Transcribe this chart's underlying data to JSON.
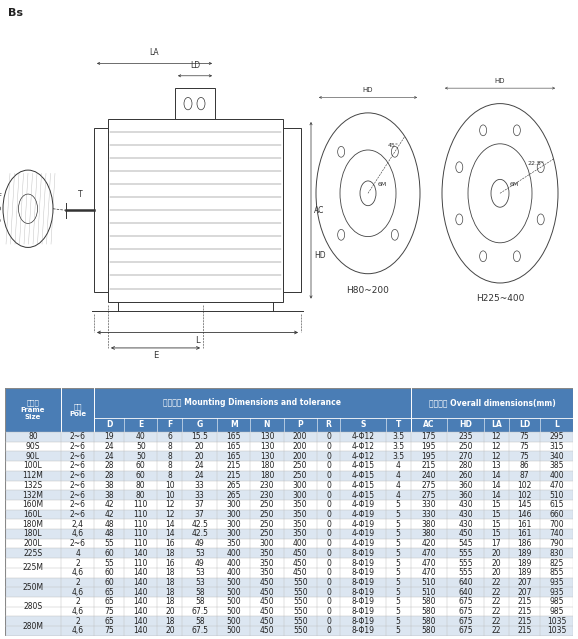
{
  "header_bg": "#4a7db5",
  "row_alt_bg": "#dce6f1",
  "row_plain_bg": "#ffffff",
  "header_text_color": "#ffffff",
  "data_text_color": "#333333",
  "rows": [
    [
      "80",
      "2~6",
      "19",
      "40",
      "6",
      "15.5",
      "165",
      "130",
      "200",
      "0",
      "4-Φ12",
      "3.5",
      "175",
      "235",
      "12",
      "75",
      "295"
    ],
    [
      "90S",
      "2~6",
      "24",
      "50",
      "8",
      "20",
      "165",
      "130",
      "200",
      "0",
      "4-Φ12",
      "3.5",
      "195",
      "250",
      "12",
      "75",
      "315"
    ],
    [
      "90L",
      "2~6",
      "24",
      "50",
      "8",
      "20",
      "165",
      "130",
      "200",
      "0",
      "4-Φ12",
      "3.5",
      "195",
      "270",
      "12",
      "75",
      "340"
    ],
    [
      "100L",
      "2~6",
      "28",
      "60",
      "8",
      "24",
      "215",
      "180",
      "250",
      "0",
      "4-Φ15",
      "4",
      "215",
      "280",
      "13",
      "86",
      "385"
    ],
    [
      "112M",
      "2~6",
      "28",
      "60",
      "8",
      "24",
      "215",
      "180",
      "250",
      "0",
      "4-Φ15",
      "4",
      "240",
      "260",
      "14",
      "87",
      "400"
    ],
    [
      "132S",
      "2~6",
      "38",
      "80",
      "10",
      "33",
      "265",
      "230",
      "300",
      "0",
      "4-Φ15",
      "4",
      "275",
      "360",
      "14",
      "102",
      "470"
    ],
    [
      "132M",
      "2~6",
      "38",
      "80",
      "10",
      "33",
      "265",
      "230",
      "300",
      "0",
      "4-Φ15",
      "4",
      "275",
      "360",
      "14",
      "102",
      "510"
    ],
    [
      "160M",
      "2~6",
      "42",
      "110",
      "12",
      "37",
      "300",
      "250",
      "350",
      "0",
      "4-Φ19",
      "5",
      "330",
      "430",
      "15",
      "145",
      "615"
    ],
    [
      "160L",
      "2~6",
      "42",
      "110",
      "12",
      "37",
      "300",
      "250",
      "350",
      "0",
      "4-Φ19",
      "5",
      "330",
      "430",
      "15",
      "146",
      "660"
    ],
    [
      "180M",
      "2,4",
      "48",
      "110",
      "14",
      "42.5",
      "300",
      "250",
      "350",
      "0",
      "4-Φ19",
      "5",
      "380",
      "430",
      "15",
      "161",
      "700"
    ],
    [
      "180L",
      "4,6",
      "48",
      "110",
      "14",
      "42.5",
      "300",
      "250",
      "350",
      "0",
      "4-Φ19",
      "5",
      "380",
      "450",
      "15",
      "161",
      "740"
    ],
    [
      "200L",
      "2~6",
      "55",
      "110",
      "16",
      "49",
      "350",
      "300",
      "400",
      "0",
      "4-Φ19",
      "5",
      "420",
      "545",
      "17",
      "186",
      "790"
    ],
    [
      "225S",
      "4",
      "60",
      "140",
      "18",
      "53",
      "400",
      "350",
      "450",
      "0",
      "8-Φ19",
      "5",
      "470",
      "555",
      "20",
      "189",
      "830"
    ],
    [
      "225M",
      "2",
      "55",
      "110",
      "16",
      "49",
      "400",
      "350",
      "450",
      "0",
      "8-Φ19",
      "5",
      "470",
      "555",
      "20",
      "189",
      "825"
    ],
    [
      "225M",
      "4,6",
      "60",
      "140",
      "18",
      "53",
      "400",
      "350",
      "450",
      "0",
      "8-Φ19",
      "5",
      "470",
      "555",
      "20",
      "189",
      "855"
    ],
    [
      "250M",
      "2",
      "60",
      "140",
      "18",
      "53",
      "500",
      "450",
      "550",
      "0",
      "8-Φ19",
      "5",
      "510",
      "640",
      "22",
      "207",
      "935"
    ],
    [
      "250M",
      "4,6",
      "65",
      "140",
      "18",
      "58",
      "500",
      "450",
      "550",
      "0",
      "8-Φ19",
      "5",
      "510",
      "640",
      "22",
      "207",
      "935"
    ],
    [
      "280S",
      "2",
      "65",
      "140",
      "18",
      "58",
      "500",
      "450",
      "550",
      "0",
      "8-Φ19",
      "5",
      "580",
      "675",
      "22",
      "215",
      "985"
    ],
    [
      "280S",
      "4,6",
      "75",
      "140",
      "20",
      "67.5",
      "500",
      "450",
      "550",
      "0",
      "8-Φ19",
      "5",
      "580",
      "675",
      "22",
      "215",
      "985"
    ],
    [
      "280M",
      "2",
      "65",
      "140",
      "18",
      "58",
      "500",
      "450",
      "550",
      "0",
      "8-Φ19",
      "5",
      "580",
      "675",
      "22",
      "215",
      "1035"
    ],
    [
      "280M",
      "4,6",
      "75",
      "140",
      "20",
      "67.5",
      "500",
      "450",
      "550",
      "0",
      "8-Φ19",
      "5",
      "580",
      "675",
      "22",
      "215",
      "1035"
    ]
  ]
}
